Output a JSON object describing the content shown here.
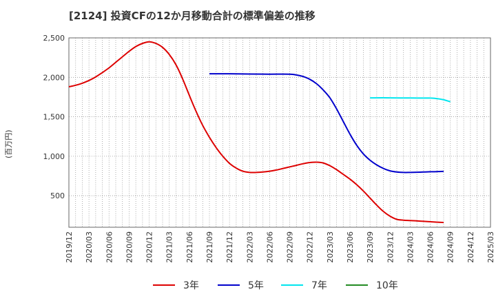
{
  "title": "[2124]  投資CFの12か月移動合計の標準偏差の推移",
  "chart_data": {
    "type": "line",
    "ylabel": "(百万円)",
    "xlabel": "",
    "ylim": [
      100,
      2500
    ],
    "yticks": [
      500,
      1000,
      1500,
      2000,
      2500
    ],
    "ytick_labels": [
      "500",
      "1,000",
      "1,500",
      "2,000",
      "2,500"
    ],
    "x_start": "2019/12",
    "x_end": "2025/03",
    "xtick_labels": [
      "2019/12",
      "2020/03",
      "2020/06",
      "2020/09",
      "2020/12",
      "2021/03",
      "2021/06",
      "2021/09",
      "2021/12",
      "2022/03",
      "2022/06",
      "2022/09",
      "2022/12",
      "2023/03",
      "2023/06",
      "2023/09",
      "2023/12",
      "2024/03",
      "2024/06",
      "2024/09",
      "2024/12",
      "2025/03"
    ],
    "grid": true,
    "legend_position": "bottom",
    "series": [
      {
        "name": "3年",
        "color": "#dd0000",
        "points": [
          [
            "2019/12",
            1880
          ],
          [
            "2020/01",
            1900
          ],
          [
            "2020/02",
            1925
          ],
          [
            "2020/03",
            1960
          ],
          [
            "2020/04",
            2005
          ],
          [
            "2020/05",
            2060
          ],
          [
            "2020/06",
            2120
          ],
          [
            "2020/07",
            2190
          ],
          [
            "2020/08",
            2260
          ],
          [
            "2020/09",
            2330
          ],
          [
            "2020/10",
            2390
          ],
          [
            "2020/11",
            2430
          ],
          [
            "2020/12",
            2450
          ],
          [
            "2021/01",
            2430
          ],
          [
            "2021/02",
            2380
          ],
          [
            "2021/03",
            2290
          ],
          [
            "2021/04",
            2160
          ],
          [
            "2021/05",
            1980
          ],
          [
            "2021/06",
            1770
          ],
          [
            "2021/07",
            1570
          ],
          [
            "2021/08",
            1390
          ],
          [
            "2021/09",
            1240
          ],
          [
            "2021/10",
            1110
          ],
          [
            "2021/11",
            1000
          ],
          [
            "2021/12",
            910
          ],
          [
            "2022/01",
            850
          ],
          [
            "2022/02",
            810
          ],
          [
            "2022/03",
            795
          ],
          [
            "2022/04",
            795
          ],
          [
            "2022/05",
            800
          ],
          [
            "2022/06",
            810
          ],
          [
            "2022/07",
            825
          ],
          [
            "2022/08",
            845
          ],
          [
            "2022/09",
            865
          ],
          [
            "2022/10",
            885
          ],
          [
            "2022/11",
            905
          ],
          [
            "2022/12",
            920
          ],
          [
            "2023/01",
            925
          ],
          [
            "2023/02",
            915
          ],
          [
            "2023/03",
            880
          ],
          [
            "2023/04",
            830
          ],
          [
            "2023/05",
            770
          ],
          [
            "2023/06",
            710
          ],
          [
            "2023/07",
            640
          ],
          [
            "2023/08",
            560
          ],
          [
            "2023/09",
            470
          ],
          [
            "2023/10",
            380
          ],
          [
            "2023/11",
            300
          ],
          [
            "2023/12",
            240
          ],
          [
            "2024/01",
            200
          ],
          [
            "2024/02",
            190
          ],
          [
            "2024/03",
            185
          ],
          [
            "2024/04",
            180
          ],
          [
            "2024/05",
            175
          ],
          [
            "2024/06",
            170
          ],
          [
            "2024/07",
            165
          ],
          [
            "2024/08",
            160
          ]
        ]
      },
      {
        "name": "5年",
        "color": "#0000cc",
        "points": [
          [
            "2021/09",
            2045
          ],
          [
            "2021/12",
            2045
          ],
          [
            "2022/03",
            2042
          ],
          [
            "2022/06",
            2040
          ],
          [
            "2022/09",
            2040
          ],
          [
            "2022/10",
            2030
          ],
          [
            "2022/11",
            2010
          ],
          [
            "2022/12",
            1975
          ],
          [
            "2023/01",
            1920
          ],
          [
            "2023/02",
            1840
          ],
          [
            "2023/03",
            1740
          ],
          [
            "2023/04",
            1600
          ],
          [
            "2023/05",
            1440
          ],
          [
            "2023/06",
            1280
          ],
          [
            "2023/07",
            1140
          ],
          [
            "2023/08",
            1030
          ],
          [
            "2023/09",
            950
          ],
          [
            "2023/10",
            890
          ],
          [
            "2023/11",
            845
          ],
          [
            "2023/12",
            815
          ],
          [
            "2024/01",
            800
          ],
          [
            "2024/02",
            795
          ],
          [
            "2024/03",
            795
          ],
          [
            "2024/04",
            797
          ],
          [
            "2024/05",
            800
          ],
          [
            "2024/06",
            803
          ],
          [
            "2024/07",
            805
          ],
          [
            "2024/08",
            808
          ]
        ]
      },
      {
        "name": "7年",
        "color": "#00e5ee",
        "points": [
          [
            "2023/09",
            1740
          ],
          [
            "2023/12",
            1740
          ],
          [
            "2024/03",
            1738
          ],
          [
            "2024/06",
            1737
          ],
          [
            "2024/07",
            1730
          ],
          [
            "2024/08",
            1715
          ],
          [
            "2024/09",
            1690
          ]
        ]
      },
      {
        "name": "10年",
        "color": "#228b22",
        "points": []
      }
    ]
  }
}
